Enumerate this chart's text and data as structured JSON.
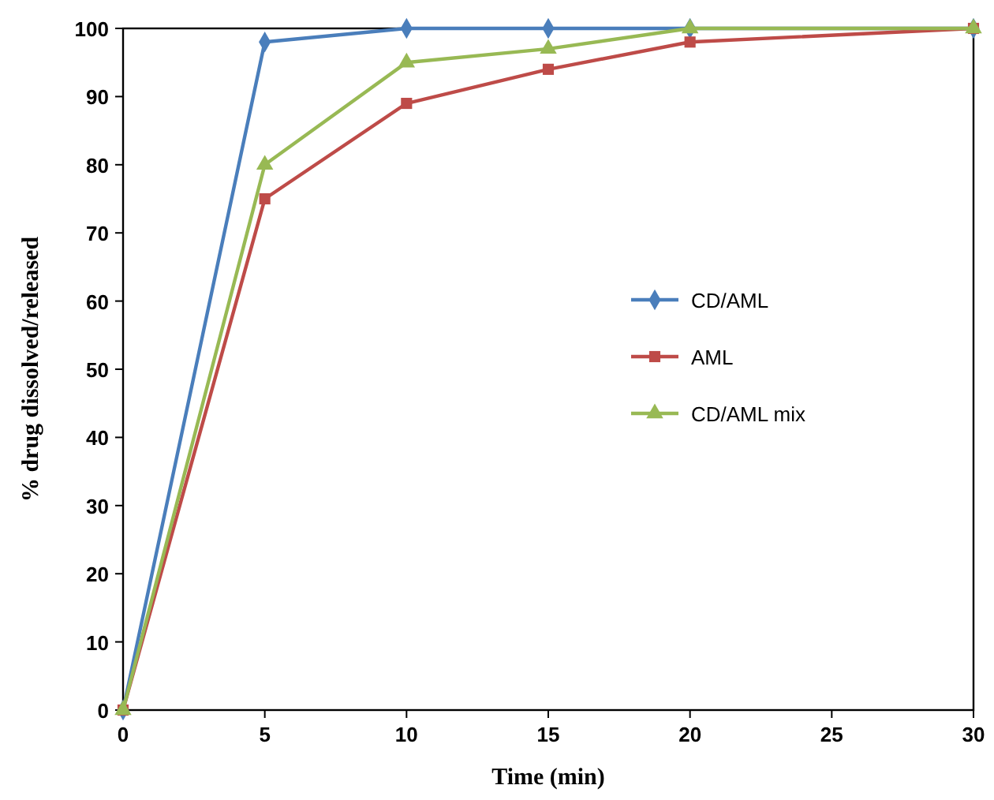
{
  "chart_data": {
    "type": "line",
    "xlabel": "Time (min)",
    "ylabel": "% drug dissolved/released",
    "x": [
      0,
      5,
      10,
      15,
      20,
      30
    ],
    "series": [
      {
        "name": "CD/AML",
        "color": "#4a7ebb",
        "marker": "diamond",
        "values": [
          0,
          98,
          100,
          100,
          100,
          100
        ]
      },
      {
        "name": "AML",
        "color": "#be4b48",
        "marker": "square",
        "values": [
          0,
          75,
          89,
          94,
          98,
          100
        ]
      },
      {
        "name": "CD/AML mix",
        "color": "#98b954",
        "marker": "triangle",
        "values": [
          0,
          80,
          95,
          97,
          100,
          100
        ]
      }
    ],
    "xlim": [
      0,
      30
    ],
    "xticks": [
      0,
      5,
      10,
      15,
      20,
      25,
      30
    ],
    "ylim": [
      0,
      100
    ],
    "yticks": [
      0,
      10,
      20,
      30,
      40,
      50,
      60,
      70,
      80,
      90,
      100
    ],
    "grid": false,
    "legend": "right",
    "line_style": "solid"
  }
}
